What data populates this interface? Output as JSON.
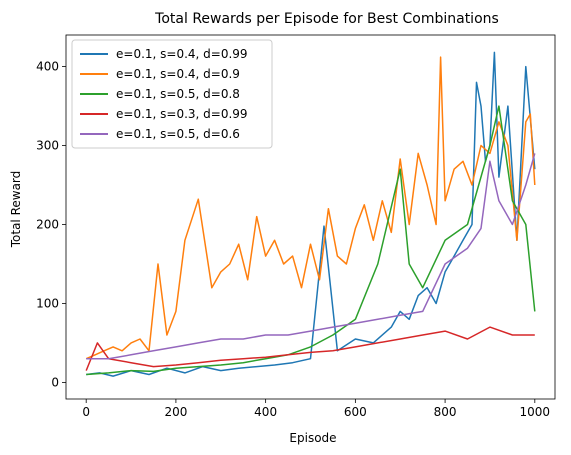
{
  "chart_data": {
    "type": "line",
    "title": "Total Rewards per Episode for Best Combinations",
    "xlabel": "Episode",
    "ylabel": "Total Reward",
    "xlim": [
      -45,
      1045
    ],
    "ylim": [
      -21,
      440
    ],
    "xticks": [
      0,
      200,
      400,
      600,
      800,
      1000
    ],
    "yticks": [
      0,
      100,
      200,
      300,
      400
    ],
    "grid": false,
    "legend_position": "top-left",
    "series": [
      {
        "name": "e=0.1, s=0.4, d=0.99",
        "color": "#1f77b4",
        "x": [
          0,
          30,
          60,
          100,
          140,
          180,
          220,
          260,
          300,
          340,
          380,
          420,
          460,
          500,
          530,
          560,
          600,
          640,
          680,
          700,
          720,
          740,
          760,
          780,
          800,
          820,
          840,
          860,
          870,
          880,
          890,
          900,
          910,
          920,
          940,
          960,
          980,
          1000
        ],
        "y": [
          10,
          12,
          8,
          15,
          10,
          18,
          12,
          20,
          15,
          18,
          20,
          22,
          25,
          30,
          198,
          40,
          55,
          50,
          70,
          90,
          80,
          110,
          120,
          100,
          140,
          160,
          180,
          200,
          380,
          350,
          280,
          300,
          418,
          260,
          350,
          180,
          400,
          270
        ]
      },
      {
        "name": "e=0.1, s=0.4, d=0.9",
        "color": "#ff7f0e",
        "x": [
          0,
          20,
          40,
          60,
          80,
          100,
          120,
          140,
          160,
          180,
          200,
          220,
          250,
          280,
          300,
          320,
          340,
          360,
          380,
          400,
          420,
          440,
          460,
          480,
          500,
          520,
          540,
          560,
          580,
          600,
          620,
          640,
          660,
          680,
          700,
          720,
          740,
          760,
          780,
          790,
          800,
          820,
          840,
          860,
          880,
          900,
          920,
          940,
          960,
          980,
          990,
          1000
        ],
        "y": [
          30,
          35,
          40,
          45,
          40,
          50,
          55,
          40,
          150,
          60,
          90,
          180,
          232,
          120,
          140,
          150,
          175,
          130,
          210,
          160,
          180,
          150,
          160,
          120,
          175,
          130,
          220,
          160,
          150,
          195,
          225,
          180,
          230,
          190,
          283,
          200,
          290,
          250,
          200,
          412,
          230,
          270,
          280,
          250,
          300,
          290,
          330,
          300,
          180,
          330,
          340,
          250
        ]
      },
      {
        "name": "e=0.1, s=0.5, d=0.8",
        "color": "#2ca02c",
        "x": [
          0,
          50,
          100,
          150,
          200,
          250,
          300,
          350,
          400,
          450,
          500,
          550,
          600,
          650,
          700,
          720,
          750,
          800,
          850,
          900,
          920,
          950,
          980,
          1000
        ],
        "y": [
          10,
          12,
          15,
          14,
          18,
          20,
          22,
          25,
          30,
          35,
          45,
          60,
          80,
          150,
          270,
          150,
          120,
          180,
          200,
          300,
          350,
          230,
          200,
          90
        ]
      },
      {
        "name": "e=0.1, s=0.3, d=0.99",
        "color": "#d62728",
        "x": [
          0,
          25,
          50,
          100,
          150,
          200,
          250,
          300,
          350,
          400,
          450,
          500,
          550,
          600,
          650,
          700,
          750,
          800,
          850,
          900,
          950,
          1000
        ],
        "y": [
          15,
          50,
          30,
          25,
          20,
          22,
          25,
          28,
          30,
          32,
          35,
          38,
          40,
          45,
          50,
          55,
          60,
          65,
          55,
          70,
          60,
          60
        ]
      },
      {
        "name": "e=0.1, s=0.5, d=0.6",
        "color": "#9467bd",
        "x": [
          0,
          50,
          100,
          150,
          200,
          250,
          300,
          350,
          400,
          450,
          500,
          550,
          600,
          650,
          700,
          750,
          800,
          850,
          880,
          900,
          920,
          950,
          980,
          1000
        ],
        "y": [
          30,
          30,
          35,
          40,
          45,
          50,
          55,
          55,
          60,
          60,
          65,
          70,
          75,
          80,
          85,
          90,
          150,
          170,
          195,
          280,
          230,
          200,
          250,
          290
        ]
      }
    ]
  }
}
